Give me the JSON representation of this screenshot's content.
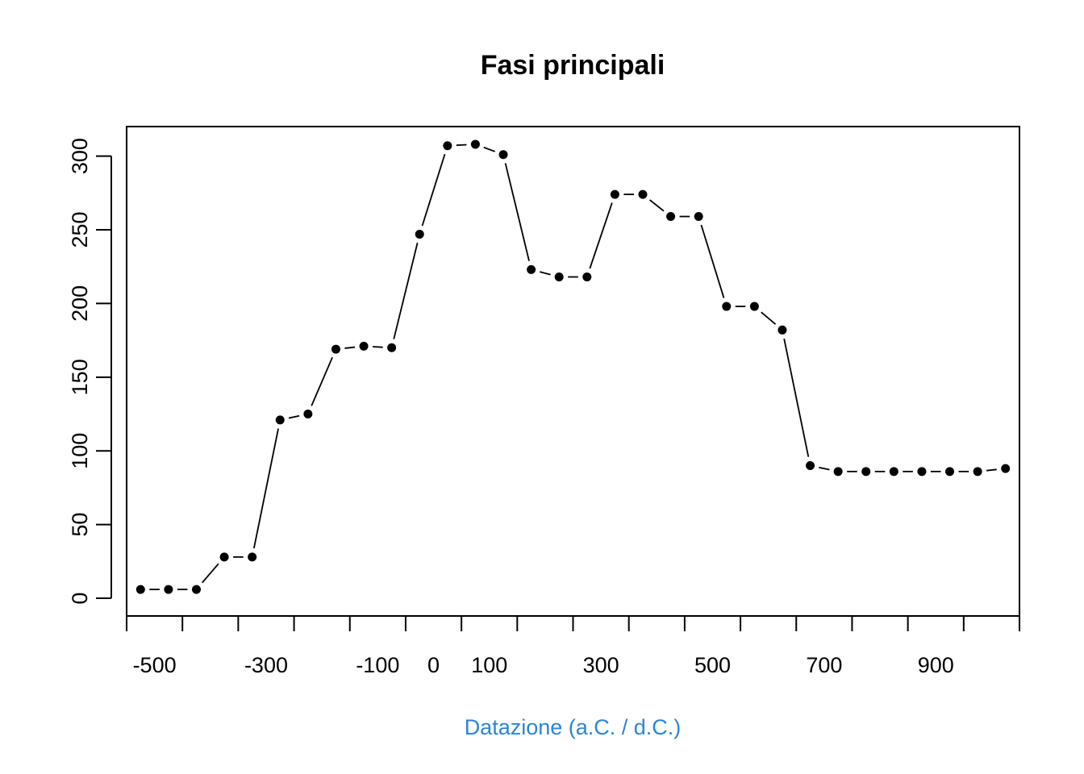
{
  "chart_data": {
    "type": "scatter",
    "title": "Fasi principali",
    "xlabel": "Datazione (a.C. / d.C.)",
    "ylabel": "",
    "xlabel_color": "#2a85d8",
    "point_color": "#000000",
    "line_color": "#000000",
    "xlim": [
      -550,
      1050
    ],
    "ylim": [
      -12,
      320
    ],
    "x_ticks": [
      -550,
      -450,
      -350,
      -250,
      -150,
      -50,
      50,
      150,
      250,
      350,
      450,
      550,
      650,
      750,
      850,
      950,
      1050
    ],
    "x_tick_labels": [
      "-500",
      "-300",
      "-100",
      "0",
      "100",
      "300",
      "500",
      "700",
      "900"
    ],
    "x_tick_label_values": [
      -500,
      -300,
      -100,
      0,
      100,
      300,
      500,
      700,
      900
    ],
    "y_ticks": [
      0,
      50,
      100,
      150,
      200,
      250,
      300
    ],
    "y_tick_labels": [
      "0",
      "50",
      "100",
      "150",
      "200",
      "250",
      "300"
    ],
    "x": [
      -525,
      -475,
      -425,
      -375,
      -325,
      -275,
      -225,
      -175,
      -125,
      -75,
      -25,
      25,
      75,
      125,
      175,
      225,
      275,
      325,
      375,
      425,
      475,
      525,
      575,
      625,
      675,
      725,
      775,
      825,
      875,
      925,
      975,
      1025
    ],
    "y": [
      6,
      6,
      6,
      28,
      28,
      121,
      125,
      169,
      171,
      170,
      247,
      307,
      308,
      301,
      223,
      218,
      218,
      274,
      274,
      259,
      259,
      198,
      198,
      182,
      90,
      86,
      86,
      86,
      86,
      86,
      86,
      88
    ],
    "grid": false,
    "legend": "none"
  }
}
